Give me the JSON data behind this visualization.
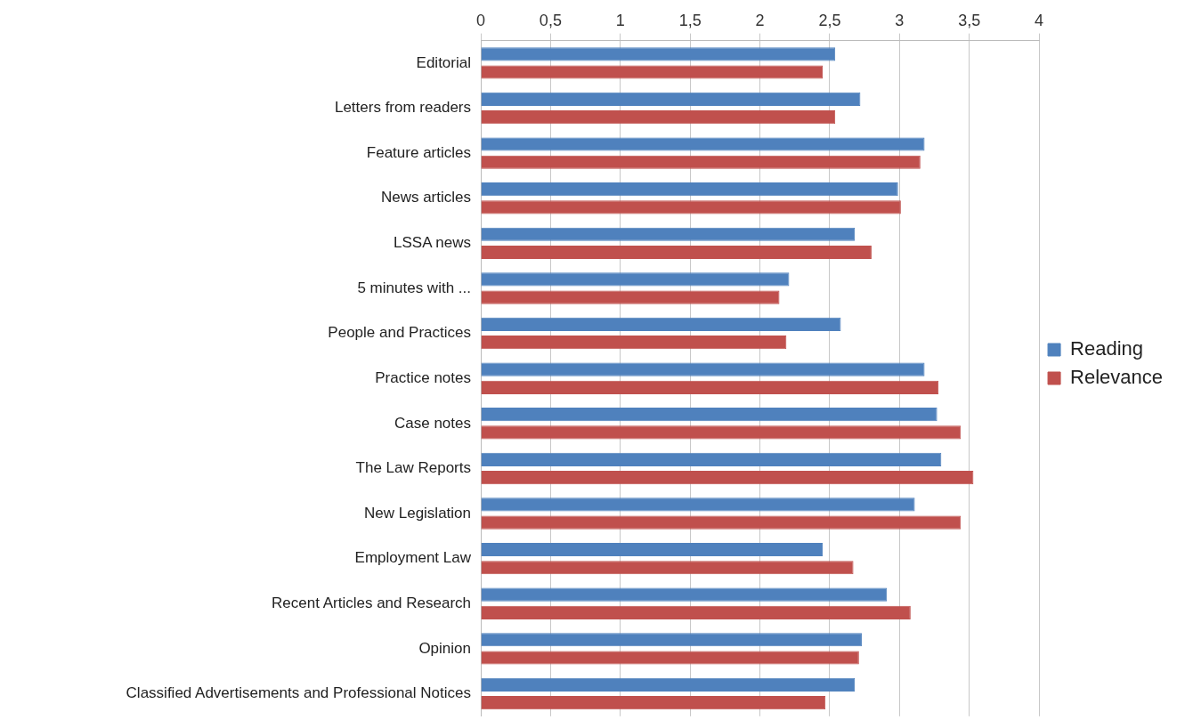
{
  "chart_data": {
    "type": "bar",
    "orientation": "horizontal",
    "categories": [
      "Editorial",
      "Letters from readers",
      "Feature articles",
      "News articles",
      "LSSA news",
      "5 minutes with ...",
      "People and Practices",
      "Practice notes",
      "Case notes",
      "The Law Reports",
      "New Legislation",
      "Employment Law",
      "Recent Articles and Research",
      "Opinion",
      "Classified Advertisements and Professional Notices"
    ],
    "series": [
      {
        "name": "Reading",
        "color": "#4f81bd",
        "values": [
          2.54,
          2.72,
          3.18,
          2.99,
          2.68,
          2.21,
          2.58,
          3.18,
          3.27,
          3.3,
          3.11,
          2.45,
          2.91,
          2.73,
          2.68
        ]
      },
      {
        "name": "Relevance",
        "color": "#c0504d",
        "values": [
          2.45,
          2.54,
          3.15,
          3.01,
          2.8,
          2.14,
          2.19,
          3.28,
          3.44,
          3.53,
          3.44,
          2.67,
          3.08,
          2.71,
          2.47
        ]
      }
    ],
    "xlim": [
      0,
      4
    ],
    "xticks": [
      0,
      {
        "value": 0.5,
        "label": "0,5"
      },
      1,
      {
        "value": 1.5,
        "label": "1,5"
      },
      2,
      {
        "value": 2.5,
        "label": "2,5"
      },
      3,
      {
        "value": 3.5,
        "label": "3,5"
      },
      4
    ],
    "grid": "x",
    "legend": "right"
  }
}
